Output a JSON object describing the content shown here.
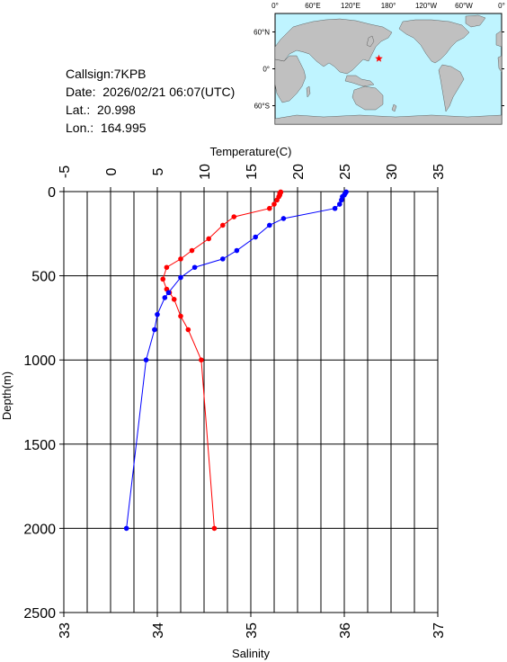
{
  "info": {
    "callsign": "Callsign:7KPB",
    "date": "Date:  2026/02/21 06:07(UTC)",
    "lat": "Lat.:  20.998",
    "lon": "Lon.:  164.995"
  },
  "map": {
    "top_labels": [
      "0°",
      "60°E",
      "120°E",
      "180°",
      "120°W",
      "60°W",
      "0°"
    ],
    "side_labels": [
      "60°N",
      "0°",
      "60°S"
    ],
    "station": {
      "lon": 164.995,
      "lat": 20.998
    },
    "colors": {
      "ocean": "#bff4ff",
      "land": "#c0c0c0",
      "marker": "#ff0000"
    }
  },
  "chart_data": {
    "type": "line",
    "ylabel": "Depth(m)",
    "ylim": [
      0,
      2500
    ],
    "y_ticks": [
      "0",
      "500",
      "1000",
      "1500",
      "2000",
      "2500"
    ],
    "temperature_axis": {
      "label": "Temperature(C)",
      "range": [
        -5,
        35
      ],
      "ticks": [
        "-5",
        "0",
        "5",
        "10",
        "15",
        "20",
        "25",
        "30",
        "35"
      ]
    },
    "salinity_axis": {
      "label": "Salinity",
      "range": [
        33,
        37
      ],
      "ticks": [
        "33",
        "34",
        "35",
        "36",
        "37"
      ]
    },
    "series": [
      {
        "color": "#ff0000",
        "axis": "temperature",
        "depth": [
          2,
          5,
          10,
          20,
          30,
          50,
          75,
          100,
          150,
          200,
          280,
          350,
          400,
          450,
          520,
          580,
          600,
          640,
          740,
          820,
          1000,
          2000
        ],
        "values": [
          18.2,
          18.2,
          18.1,
          18.1,
          18.0,
          17.8,
          17.5,
          17.0,
          13.2,
          12.0,
          10.5,
          8.7,
          7.5,
          6.0,
          5.6,
          6.0,
          6.3,
          6.8,
          7.5,
          8.3,
          9.7,
          11.1
        ]
      },
      {
        "color": "#0000ff",
        "axis": "salinity",
        "depth": [
          2,
          10,
          20,
          30,
          50,
          75,
          100,
          160,
          200,
          270,
          350,
          400,
          450,
          510,
          600,
          630,
          730,
          820,
          1000,
          2000
        ],
        "values": [
          36.02,
          36.01,
          36.0,
          35.98,
          35.97,
          35.95,
          35.9,
          35.35,
          35.2,
          35.05,
          34.85,
          34.7,
          34.4,
          34.25,
          34.12,
          34.08,
          34.0,
          33.97,
          33.88,
          33.67
        ]
      }
    ]
  }
}
